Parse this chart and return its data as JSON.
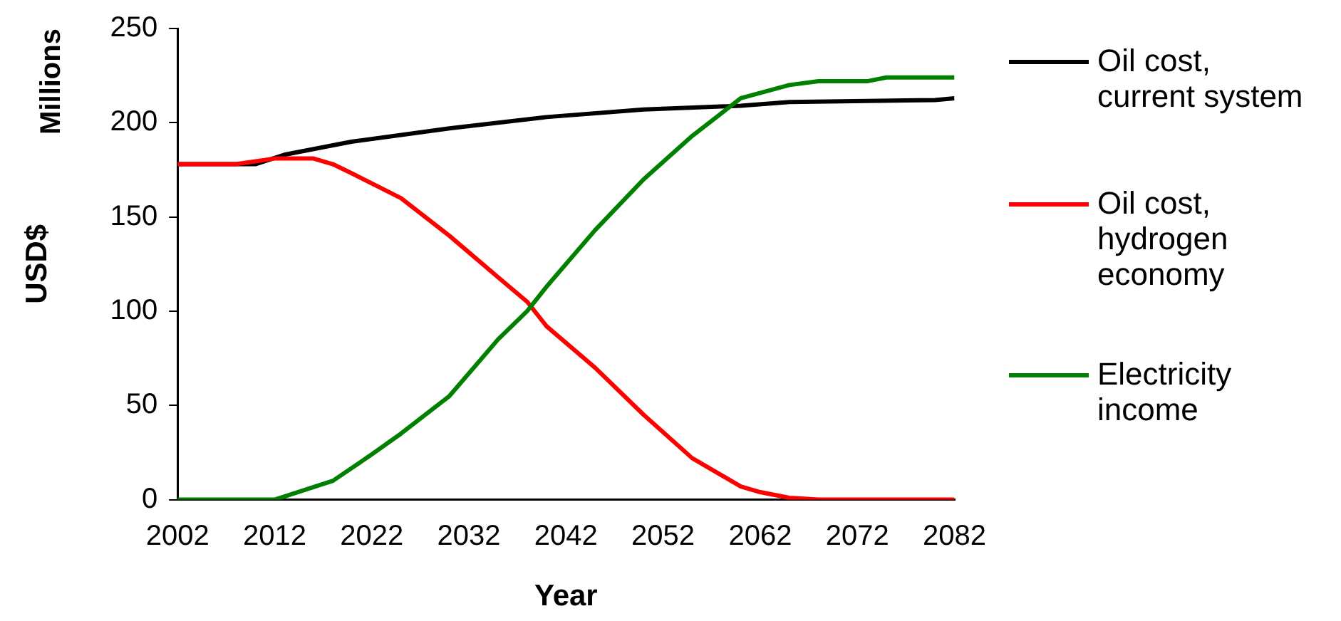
{
  "chart_data": {
    "type": "line",
    "xlabel": "Year",
    "ylabel": "USD$",
    "annotations": [
      "Millions"
    ],
    "xlim": [
      2002,
      2082
    ],
    "xticks": [
      2002,
      2012,
      2022,
      2032,
      2042,
      2052,
      2062,
      2072,
      2082
    ],
    "ylim": [
      0,
      250
    ],
    "yticks": [
      0,
      50,
      100,
      150,
      200,
      250
    ],
    "grid": false,
    "legend": "right",
    "marker": "none",
    "line_style": "solid",
    "series": [
      {
        "name": "Oil cost, current system",
        "color": "#000000",
        "x": [
          2002,
          2010,
          2013,
          2020,
          2030,
          2040,
          2050,
          2060,
          2065,
          2080,
          2082
        ],
        "values": [
          178,
          178,
          183,
          190,
          197,
          203,
          207,
          209,
          211,
          212,
          213
        ]
      },
      {
        "name": "Oil cost, hydrogen economy",
        "color": "#ff0000",
        "x": [
          2002,
          2008,
          2012,
          2016,
          2018,
          2020,
          2025,
          2030,
          2035,
          2038,
          2040,
          2045,
          2050,
          2055,
          2060,
          2062,
          2065,
          2068,
          2082
        ],
        "values": [
          178,
          178,
          181,
          181,
          178,
          173,
          160,
          140,
          118,
          105,
          92,
          70,
          45,
          22,
          7,
          4,
          1,
          0,
          0
        ]
      },
      {
        "name": "Electricity income",
        "color": "#008000",
        "x": [
          2002,
          2012,
          2015,
          2018,
          2022,
          2025,
          2030,
          2035,
          2038,
          2040,
          2045,
          2050,
          2055,
          2058,
          2060,
          2065,
          2068,
          2073,
          2075,
          2082
        ],
        "values": [
          0,
          0,
          5,
          10,
          24,
          35,
          55,
          85,
          100,
          113,
          143,
          170,
          193,
          205,
          213,
          220,
          222,
          222,
          224,
          224
        ]
      }
    ]
  }
}
